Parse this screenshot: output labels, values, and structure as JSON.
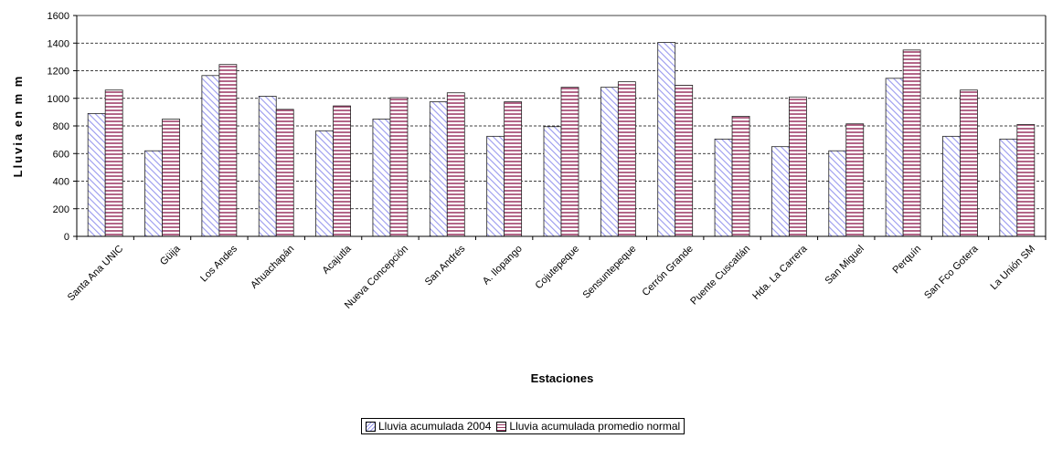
{
  "chart_data": {
    "type": "bar",
    "title": "",
    "xlabel": "Estaciones",
    "ylabel": "Lluvia en m m",
    "ylim": [
      0,
      1600
    ],
    "yticks": [
      0,
      200,
      400,
      600,
      800,
      1000,
      1200,
      1400,
      1600
    ],
    "grid": true,
    "legend_position": "bottom",
    "categories": [
      "Santa Ana UNIC",
      "Güija",
      "Los Andes",
      "Ahuachapán",
      "Acajutla",
      "Nueva Concepción",
      "San Andrés",
      "A. Ilopango",
      "Cojutepeque",
      "Sensuntepeque",
      "Cerrón Grande",
      "Puente Cuscatlán",
      "Hda. La Carrera",
      "San Miguel",
      "Perquín",
      "San Fco Gotera",
      "La Unión SM"
    ],
    "series": [
      {
        "name": "Lluvia acumulada 2004",
        "color": "#9999ee",
        "values": [
          890,
          620,
          1165,
          1015,
          765,
          850,
          975,
          725,
          795,
          1080,
          1405,
          705,
          650,
          620,
          1145,
          725,
          705
        ]
      },
      {
        "name": "Lluvia acumulada promedio normal",
        "color": "#a0406a",
        "values": [
          1060,
          850,
          1245,
          920,
          945,
          1005,
          1040,
          975,
          1080,
          1120,
          1095,
          870,
          1010,
          815,
          1350,
          1060,
          810
        ]
      }
    ]
  }
}
